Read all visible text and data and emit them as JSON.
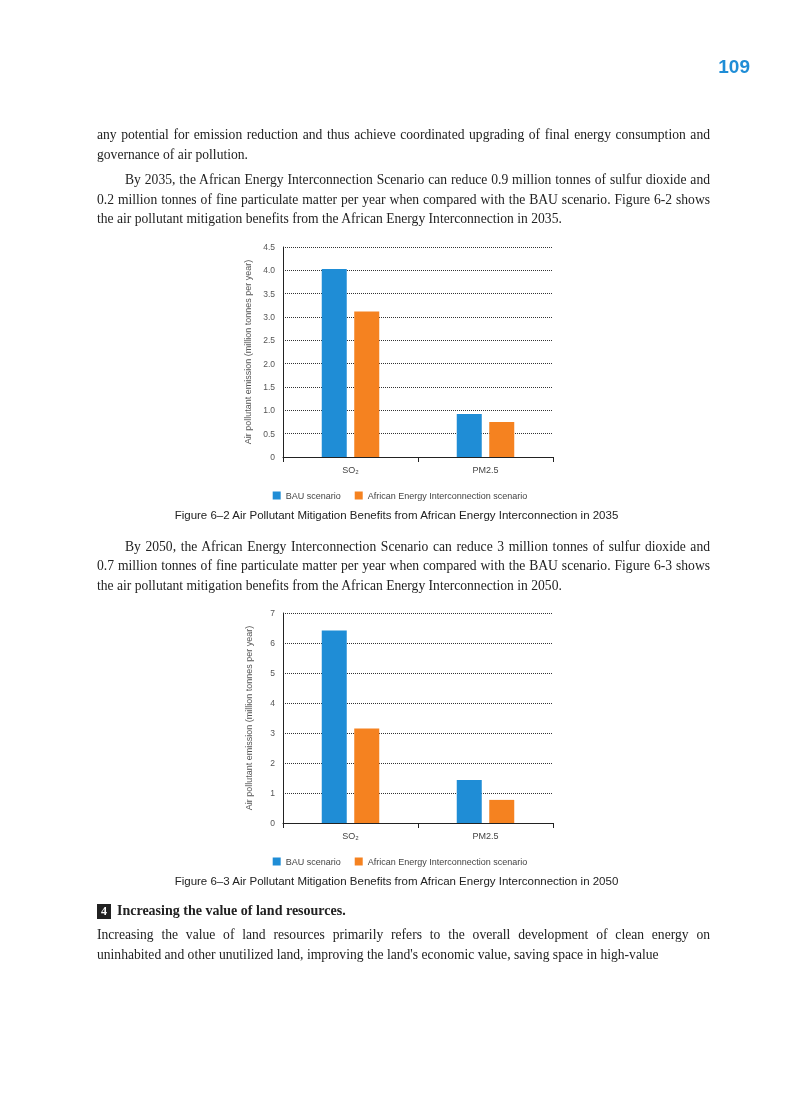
{
  "chart_data": [
    {
      "type": "bar",
      "title": "Figure 6–2   Air Pollutant Mitigation Benefits from African Energy Interconnection in 2035",
      "annotations": [
        "109",
        "any potential for emission reduction and thus achieve coordinated upgrading of final energy consumption and governance of air pollution.",
        "By 2035, the African Energy Interconnection Scenario can reduce 0.9 million tonnes of sulfur dioxide and 0.2 million tonnes of fine particulate matter per year when compared with the BAU scenario. Figure 6-2 shows the air pollutant mitigation benefits from the African Energy Interconnection in 2035."
      ],
      "ylabel": "Air pollutant emission (million tonnes per year)",
      "categories": [
        "SO₂",
        "PM2.5"
      ],
      "series": [
        {
          "name": "BAU scenario",
          "color": "#1f8dd6",
          "values": [
            4.03,
            0.92
          ]
        },
        {
          "name": "African Energy Interconnection scenario",
          "color": "#f58220",
          "values": [
            3.12,
            0.75
          ]
        }
      ],
      "ylim": [
        0,
        4.5
      ],
      "yticks": [
        0,
        0.5,
        {
          "value": 1,
          "label": "1.0"
        },
        1.5,
        {
          "value": 2,
          "label": "2.0"
        },
        2.5,
        {
          "value": 3,
          "label": "3.0"
        },
        3.5,
        {
          "value": 4,
          "label": "4.0"
        },
        4.5
      ],
      "grid": "y",
      "legend": "bottom"
    },
    {
      "type": "bar",
      "title": "Figure 6–3   Air Pollutant Mitigation Benefits from African Energy Interconnection in 2050",
      "annotations": [
        "By 2050, the African Energy Interconnection Scenario can reduce 3 million tonnes of sulfur dioxide and 0.7 million tonnes of fine particulate matter per year when compared with the BAU scenario. Figure 6-3 shows the air pollutant mitigation benefits from the African Energy Interconnection in 2050.",
        "4 Increasing the value of land resources.",
        "Increasing the value of land resources primarily refers to the overall development of clean energy on uninhabited and other unutilized land, improving the land's economic value, saving space in high-value"
      ],
      "ylabel": "Air pollutant emission (million tonnes per year)",
      "categories": [
        "SO₂",
        "PM2.5"
      ],
      "series": [
        {
          "name": "BAU scenario",
          "color": "#1f8dd6",
          "values": [
            6.42,
            1.43
          ]
        },
        {
          "name": "African Energy Interconnection scenario",
          "color": "#f58220",
          "values": [
            3.15,
            0.77
          ]
        }
      ],
      "ylim": [
        0,
        7
      ],
      "yticks": [
        0,
        1,
        2,
        3,
        4,
        5,
        6,
        7
      ],
      "grid": "y",
      "legend": "bottom"
    }
  ]
}
